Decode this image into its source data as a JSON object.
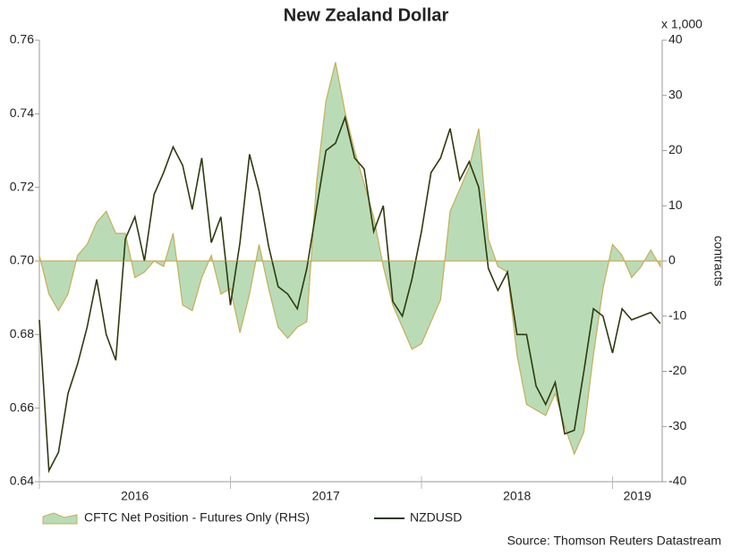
{
  "chart_data": {
    "type": "line",
    "title": "New Zealand Dollar",
    "y2_unit_note": "x 1,000",
    "y2_label": "contracts",
    "source": "Source: Thomson Reuters Datastream",
    "x": [
      2016,
      2016.05,
      2016.1,
      2016.15,
      2016.2,
      2016.25,
      2016.3,
      2016.35,
      2016.4,
      2016.45,
      2016.5,
      2016.55,
      2016.6,
      2016.65,
      2016.7,
      2016.75,
      2016.8,
      2016.85,
      2016.9,
      2016.95,
      2017,
      2017.05,
      2017.1,
      2017.15,
      2017.2,
      2017.25,
      2017.3,
      2017.35,
      2017.4,
      2017.45,
      2017.5,
      2017.55,
      2017.6,
      2017.65,
      2017.7,
      2017.75,
      2017.8,
      2017.85,
      2017.9,
      2017.95,
      2018,
      2018.05,
      2018.1,
      2018.15,
      2018.2,
      2018.25,
      2018.3,
      2018.35,
      2018.4,
      2018.45,
      2018.5,
      2018.55,
      2018.6,
      2018.65,
      2018.7,
      2018.75,
      2018.8,
      2018.85,
      2018.9,
      2018.95,
      2019,
      2019.05,
      2019.1,
      2019.15,
      2019.2,
      2019.25
    ],
    "xlim": [
      2016,
      2019.26
    ],
    "xticks": [
      2016,
      2017,
      2018,
      2019
    ],
    "ylim": [
      0.64,
      0.76
    ],
    "yticks": [
      0.64,
      0.66,
      0.68,
      {
        "value": 0.7,
        "label": "0.70"
      },
      0.72,
      0.74,
      0.76
    ],
    "y2lim": [
      -40,
      40
    ],
    "y2ticks": [
      -40,
      -30,
      -20,
      -10,
      0,
      10,
      20,
      30,
      40
    ],
    "grid": false,
    "series": [
      {
        "name": "CFTC Net Position - Futures Only (RHS)",
        "kind": "area",
        "axis": "y2",
        "color": "#b9dcb6",
        "edge_color": "#c4ae5a",
        "values": [
          1,
          -6,
          -9,
          -6,
          1,
          3,
          7,
          9,
          5,
          5,
          -3,
          -2,
          0,
          -1,
          5,
          -8,
          -9,
          -3,
          1,
          -6,
          -5,
          -13,
          -6,
          3,
          -5,
          -12,
          -14,
          -12,
          -11,
          14,
          29,
          36,
          27,
          20,
          14,
          8,
          -1,
          -8,
          -12,
          -16,
          -15,
          -11,
          -7,
          9,
          13,
          17,
          24,
          4,
          -1,
          -2,
          -17,
          -26,
          -27,
          -28,
          -24,
          -30,
          -35,
          -31,
          -17,
          -5,
          3,
          1,
          -3,
          -1,
          2,
          -1
        ]
      },
      {
        "name": "NZDUSD",
        "kind": "line",
        "color": "#2e3a0f",
        "values": [
          0.684,
          0.643,
          0.648,
          0.664,
          0.672,
          0.682,
          0.695,
          0.68,
          0.673,
          0.706,
          0.712,
          0.7,
          0.718,
          0.724,
          0.731,
          0.726,
          0.714,
          0.728,
          0.705,
          0.712,
          0.688,
          0.705,
          0.729,
          0.719,
          0.704,
          0.693,
          0.691,
          0.687,
          0.698,
          0.714,
          0.73,
          0.732,
          0.739,
          0.728,
          0.725,
          0.708,
          0.715,
          0.689,
          0.685,
          0.695,
          0.708,
          0.724,
          0.728,
          0.736,
          0.722,
          0.727,
          0.72,
          0.698,
          0.692,
          0.697,
          0.68,
          0.68,
          0.666,
          0.661,
          0.667,
          0.653,
          0.654,
          0.67,
          0.687,
          0.685,
          0.675,
          0.687,
          0.684,
          0.685,
          0.686,
          0.683
        ]
      }
    ]
  }
}
